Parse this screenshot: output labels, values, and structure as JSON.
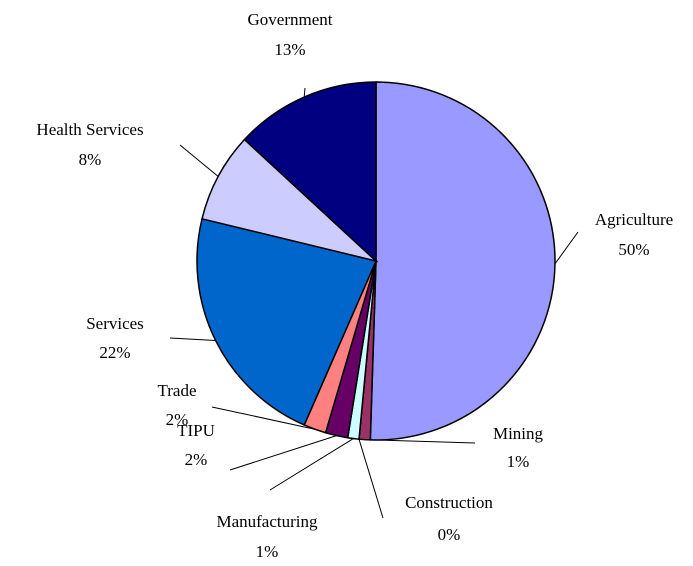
{
  "chart_data": {
    "type": "pie",
    "categories": [
      "Agriculture",
      "Mining",
      "Construction",
      "Manufacturing",
      "TIPU",
      "Trade",
      "Services",
      "Health Services",
      "Government"
    ],
    "values": [
      50,
      1,
      0,
      1,
      2,
      2,
      22,
      8,
      13
    ],
    "value_labels": [
      "50%",
      "1%",
      "0%",
      "1%",
      "2%",
      "2%",
      "22%",
      "8%",
      "13%"
    ],
    "colors": [
      "#9999ff",
      "#993366",
      "#ffffcc",
      "#ccffff",
      "#660066",
      "#ff8080",
      "#0066cc",
      "#ccccff",
      "#000080"
    ]
  }
}
